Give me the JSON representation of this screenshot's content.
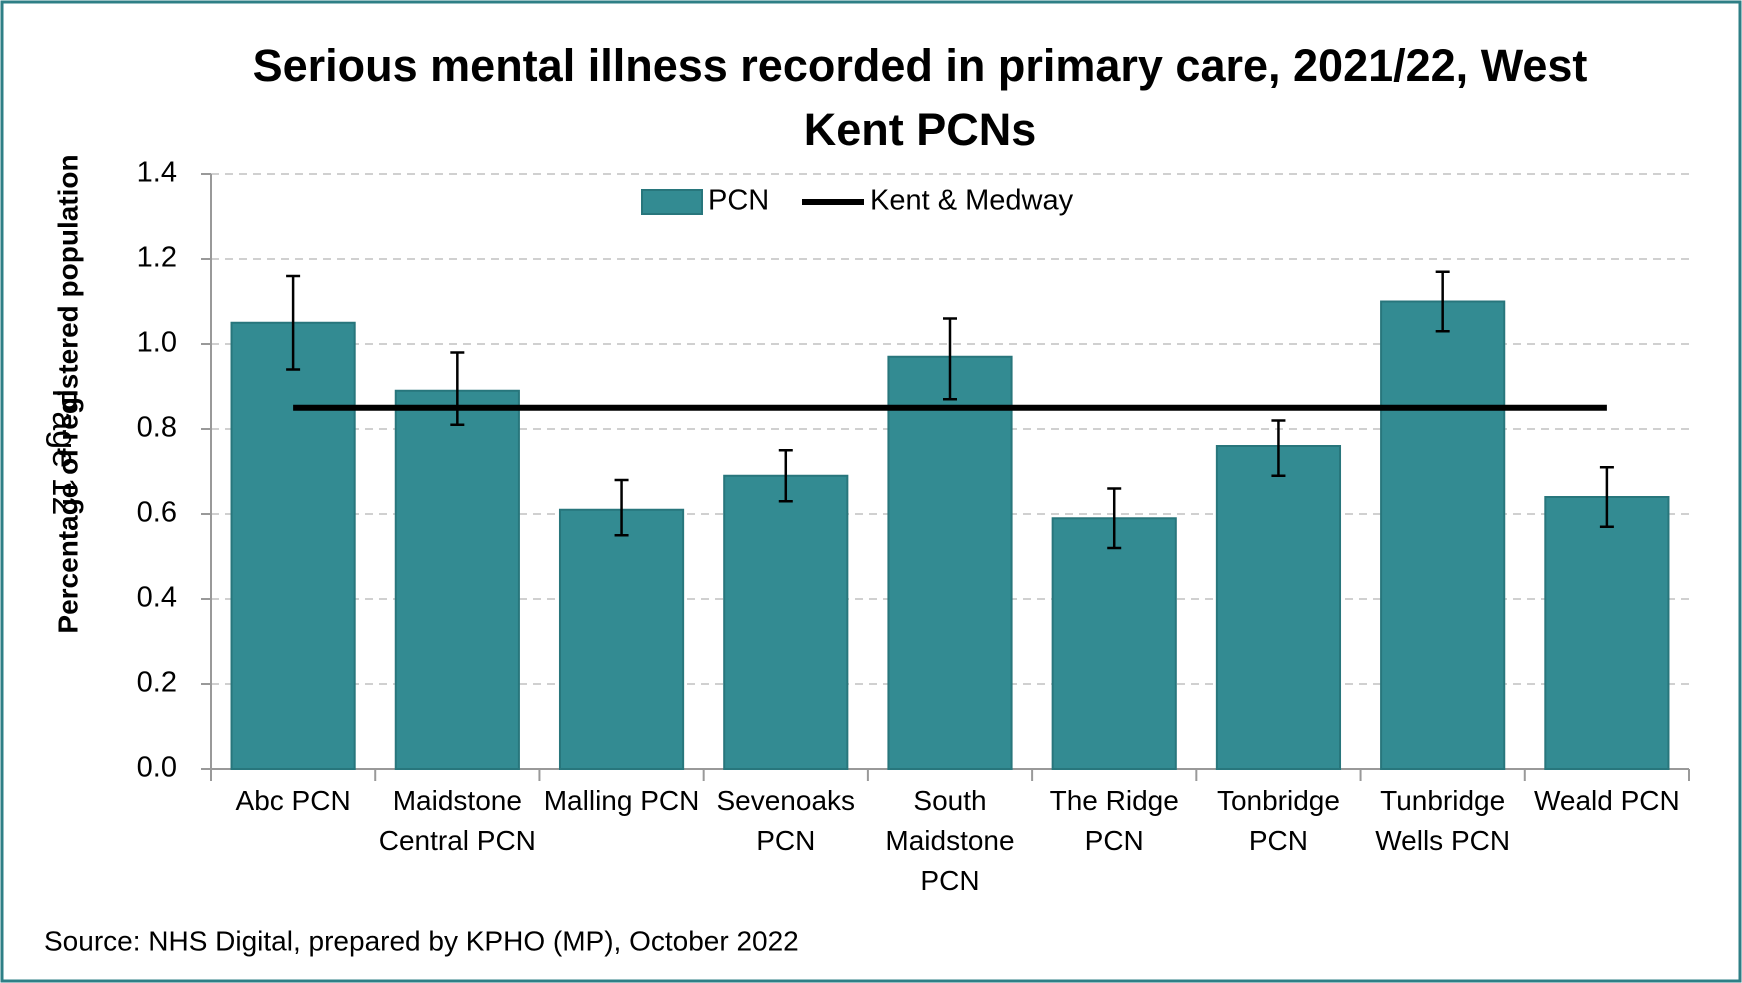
{
  "chart_data": {
    "type": "bar",
    "title": "Serious mental illness recorded in primary care, 2021/22, West Kent PCNs",
    "y_label": "Percentage of registered population",
    "source": "Source: NHS Digital, prepared by KPHO (MP), October 2022",
    "page_label": "Page 12",
    "categories": [
      "Abc PCN",
      "Maidstone Central PCN",
      "Malling PCN",
      "Sevenoaks PCN",
      "South Maidstone PCN",
      "The Ridge PCN",
      "Tonbridge PCN",
      "Tunbridge Wells PCN",
      "Weald PCN"
    ],
    "series": [
      {
        "name": "PCN",
        "color": "#338b92",
        "values": [
          1.05,
          0.89,
          0.61,
          0.69,
          0.97,
          0.59,
          0.76,
          1.1,
          0.64
        ],
        "ci_lower": [
          0.94,
          0.81,
          0.55,
          0.63,
          0.87,
          0.52,
          0.69,
          1.03,
          0.57
        ],
        "ci_upper": [
          1.16,
          0.98,
          0.68,
          0.75,
          1.06,
          0.66,
          0.82,
          1.17,
          0.71
        ]
      }
    ],
    "reference": {
      "name": "Kent & Medway",
      "value": 0.85,
      "color": "#000000"
    },
    "ylim": [
      0,
      1.4
    ],
    "yticks": [
      {
        "value": 0,
        "label": "0.0"
      },
      0.2,
      0.4,
      0.6,
      0.8,
      {
        "value": 1,
        "label": "1.0"
      },
      1.2,
      1.4
    ],
    "grid": true,
    "legend": "top"
  }
}
